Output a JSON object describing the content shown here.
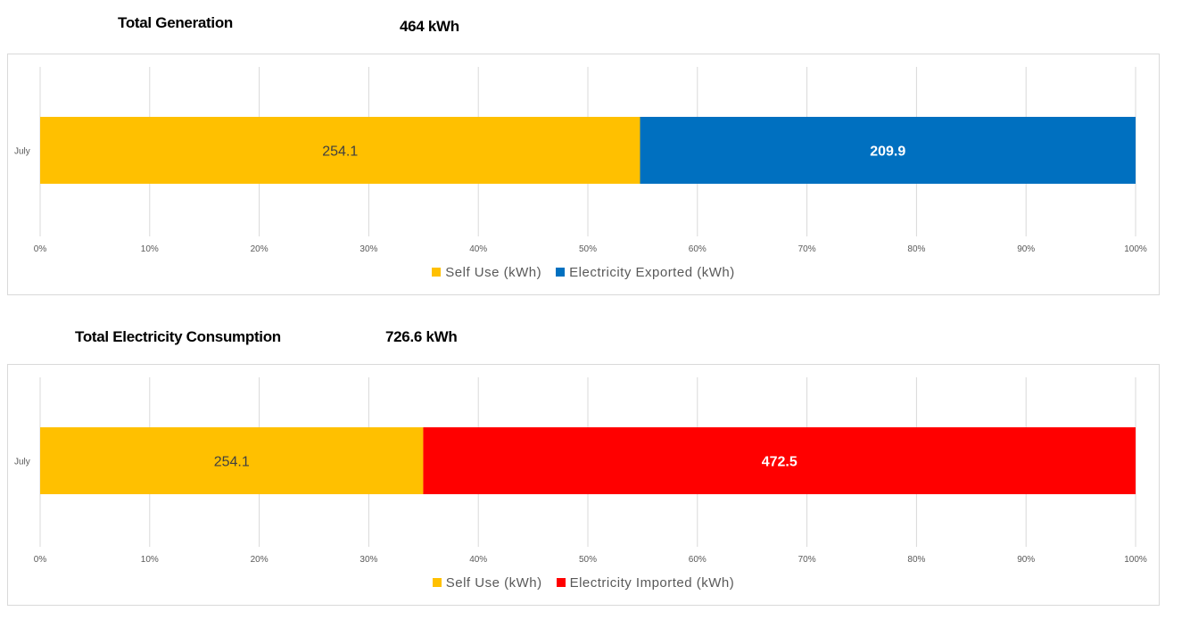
{
  "generation": {
    "title": "Total Generation",
    "total": "464  kWh"
  },
  "consumption": {
    "title": "Total Electricity Consumption",
    "total": "726.6  kWh"
  },
  "chart_data": [
    {
      "type": "bar",
      "orientation": "horizontal",
      "stacking": "percent",
      "categories": [
        "July"
      ],
      "series": [
        {
          "name": "Self Use (kWh)",
          "values": [
            254.1
          ],
          "labels": [
            "254.1"
          ],
          "color": "#FFC000",
          "label_color": "#404040"
        },
        {
          "name": "Electricity Exported (kWh)",
          "values": [
            209.9
          ],
          "labels": [
            "209.9"
          ],
          "color": "#0070C0",
          "label_color": "#ffffff"
        }
      ],
      "xticks": [
        "0%",
        "10%",
        "20%",
        "30%",
        "40%",
        "50%",
        "60%",
        "70%",
        "80%",
        "90%",
        "100%"
      ],
      "xlim": [
        0,
        100
      ],
      "grid": true,
      "legend": "bottom"
    },
    {
      "type": "bar",
      "orientation": "horizontal",
      "stacking": "percent",
      "categories": [
        "July"
      ],
      "series": [
        {
          "name": "Self Use (kWh)",
          "values": [
            254.1
          ],
          "labels": [
            "254.1"
          ],
          "color": "#FFC000",
          "label_color": "#404040"
        },
        {
          "name": "Electricity Imported (kWh)",
          "values": [
            472.5
          ],
          "labels": [
            "472.5"
          ],
          "color": "#FF0000",
          "label_color": "#ffffff"
        }
      ],
      "xticks": [
        "0%",
        "10%",
        "20%",
        "30%",
        "40%",
        "50%",
        "60%",
        "70%",
        "80%",
        "90%",
        "100%"
      ],
      "xlim": [
        0,
        100
      ],
      "grid": true,
      "legend": "bottom"
    }
  ]
}
